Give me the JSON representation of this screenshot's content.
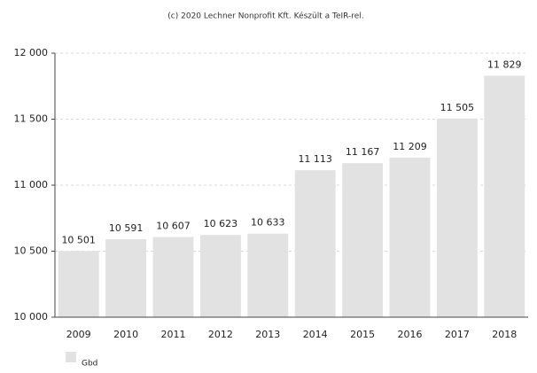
{
  "chart_data": {
    "type": "bar",
    "title": "(c) 2020 Lechner Nonprofit Kft. Készült a TeIR-rel.",
    "categories": [
      "2009",
      "2010",
      "2011",
      "2012",
      "2013",
      "2014",
      "2015",
      "2016",
      "2017",
      "2018"
    ],
    "values": [
      10501,
      10591,
      10607,
      10623,
      10633,
      11113,
      11167,
      11209,
      11505,
      11829
    ],
    "value_labels": [
      "10 501",
      "10 591",
      "10 607",
      "10 623",
      "10 633",
      "11 113",
      "11 167",
      "11 209",
      "11 505",
      "11 829"
    ],
    "color": "#e2e2e2",
    "ylim": [
      10000,
      12000
    ],
    "yticks": [
      {
        "value": 10000,
        "label": "10 000"
      },
      {
        "value": 10500,
        "label": "10 500"
      },
      {
        "value": 11000,
        "label": "11 000"
      },
      {
        "value": 11500,
        "label": "11 500"
      },
      {
        "value": 12000,
        "label": "12 000"
      }
    ],
    "grid": true,
    "legend": {
      "labels": [
        "Gbd"
      ],
      "position": "bottom-left"
    }
  }
}
